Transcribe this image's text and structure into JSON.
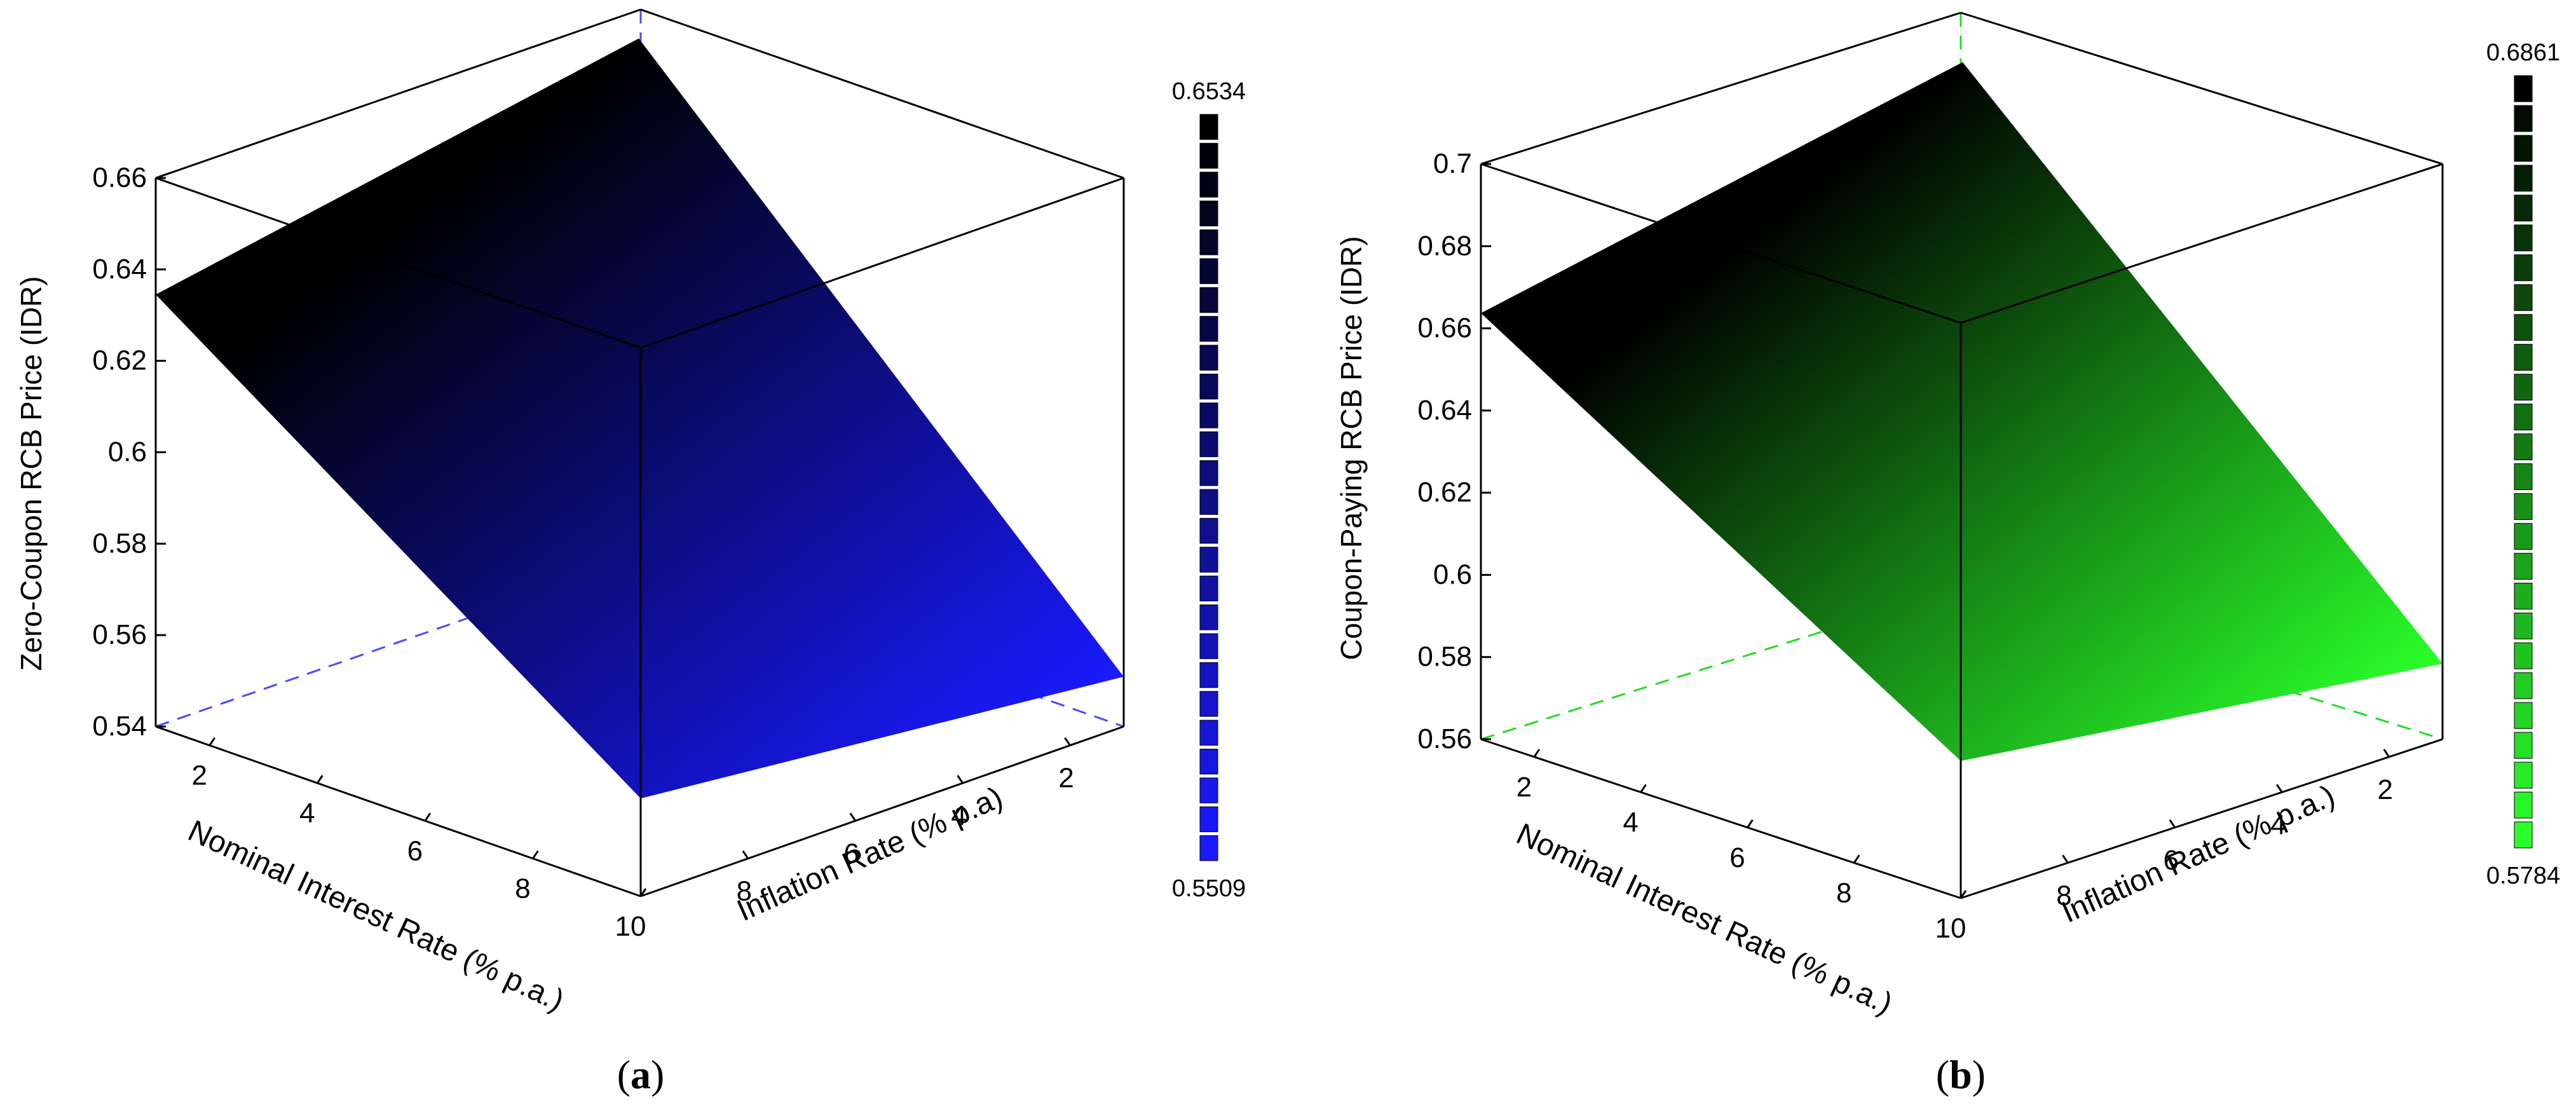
{
  "chart_data": [
    {
      "type": "surface",
      "panel_label": "a",
      "zlabel": "Zero-Coupon RCB Price (IDR)",
      "xlabel": "Nominal Interest Rate (% p.a.)",
      "ylabel": "Inflation Rate (% p.a)",
      "z_ticks": [
        "0.54",
        "0.56",
        "0.58",
        "0.6",
        "0.62",
        "0.64",
        "0.66"
      ],
      "zlim": [
        0.54,
        0.66
      ],
      "x_ticks": [
        "2",
        "4",
        "6",
        "8",
        "10"
      ],
      "y_ticks": [
        "8",
        "6",
        "4",
        "2"
      ],
      "xlim": [
        1,
        10
      ],
      "ylim": [
        1,
        10
      ],
      "surface_corners": [
        {
          "nominal": 1,
          "inflation": 1,
          "price": 0.6534
        },
        {
          "nominal": 1,
          "inflation": 10,
          "price": 0.6345
        },
        {
          "nominal": 10,
          "inflation": 1,
          "price": 0.5509
        },
        {
          "nominal": 10,
          "inflation": 10,
          "price": 0.5614
        }
      ],
      "colorbar": {
        "max_label": "0.6534",
        "min_label": "0.5509",
        "low_color": "#1a1aff",
        "high_color": "#000000",
        "steps": 26
      },
      "guide_color": "#4a4aff"
    },
    {
      "type": "surface",
      "panel_label": "b",
      "zlabel": "Coupon-Paying RCB Price (IDR)",
      "xlabel": "Nominal Interest Rate (% p.a.)",
      "ylabel": "Inflation Rate (% p.a.)",
      "z_ticks": [
        "0.56",
        "0.58",
        "0.6",
        "0.62",
        "0.64",
        "0.66",
        "0.68",
        "0.7"
      ],
      "zlim": [
        0.56,
        0.7
      ],
      "x_ticks": [
        "2",
        "4",
        "6",
        "8",
        "10"
      ],
      "y_ticks": [
        "8",
        "6",
        "4",
        "2"
      ],
      "xlim": [
        1,
        10
      ],
      "ylim": [
        1,
        10
      ],
      "surface_corners": [
        {
          "nominal": 1,
          "inflation": 1,
          "price": 0.6861
        },
        {
          "nominal": 1,
          "inflation": 10,
          "price": 0.6637
        },
        {
          "nominal": 10,
          "inflation": 1,
          "price": 0.5784
        },
        {
          "nominal": 10,
          "inflation": 10,
          "price": 0.5934
        }
      ],
      "colorbar": {
        "max_label": "0.6861",
        "min_label": "0.5784",
        "low_color": "#2aff2a",
        "high_color": "#000000",
        "steps": 26
      },
      "guide_color": "#22dd22"
    }
  ]
}
